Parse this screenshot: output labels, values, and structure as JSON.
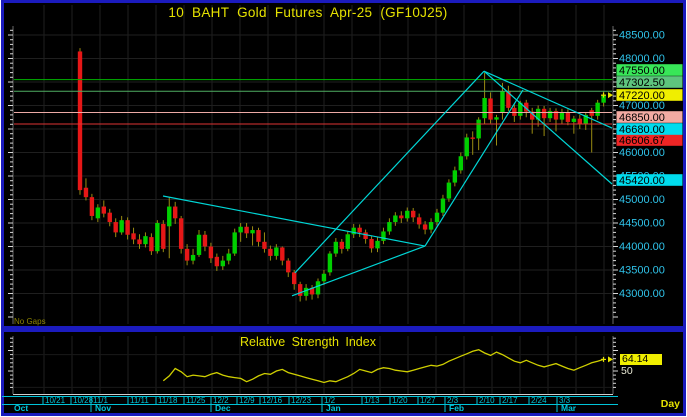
{
  "window": {
    "title": "10 BAHT Gold Futures Apr-25 (GF10J25)",
    "timeframe_label": "Day",
    "status_label": "No Gaps"
  },
  "colors": {
    "background": "#000000",
    "frame_blue": "#1b1bbe",
    "grid": "#1f1f1f",
    "axis_text_cyan": "#2fc3ea",
    "date_axis_cyan": "#00c4d8",
    "title_yellow": "#e6e200",
    "candle_up_green": "#00cf00",
    "candle_down_red": "#e61717",
    "wick_olive": "#9a8c12",
    "trendline_cyan": "#00d6d6",
    "rsi_line_yellow": "#cfcf00",
    "spine_white": "#d8d8d8"
  },
  "chart_data": [
    {
      "type": "candlestick",
      "title": "10 BAHT Gold Futures Apr-25 (GF10J25)",
      "timeframe": "Day",
      "ylim": [
        42400,
        48700
      ],
      "grid": true,
      "y_ticks": [
        48500,
        48000,
        47500,
        47000,
        46500,
        46000,
        45500,
        45000,
        44500,
        44000,
        43500,
        43000
      ],
      "levels": [
        {
          "price": 47550,
          "label": "47550.00",
          "line_color": "#00b400",
          "chip_bg": "#38e658",
          "chip_y": 70
        },
        {
          "price": 47302.5,
          "label": "47302.50",
          "line_color": "#4fae62",
          "chip_bg": "#5ec47e",
          "chip_y": 82
        },
        {
          "price": 46850,
          "label": "46850.00",
          "line_color": "#edaaa6",
          "chip_bg": "#f2aaa2",
          "chip_y": 117
        },
        {
          "price": 46606.67,
          "label": "46606.67",
          "line_color": "#de3434",
          "chip_bg": "#ee2525",
          "chip_y": 140
        }
      ],
      "last_price": {
        "price": 47220,
        "label": "47220.00",
        "chip_bg": "#f0ee00",
        "chip_y": 95
      },
      "trendline_value_labels": [
        {
          "label": "46680.00",
          "chip_bg": "#00dcee",
          "chip_y": 129
        },
        {
          "label": "45420.00",
          "chip_bg": "#00dcee",
          "chip_y": 180
        }
      ],
      "trendlines": [
        [
          163,
          45075,
          425,
          44010
        ],
        [
          292,
          42950,
          425,
          44010
        ],
        [
          295,
          43440,
          484,
          47730
        ],
        [
          425,
          44010,
          523,
          47330
        ],
        [
          484,
          47730,
          612,
          46520
        ],
        [
          484,
          47730,
          612,
          45330
        ]
      ],
      "candles": [
        [
          48150,
          48220,
          45100,
          45200
        ],
        [
          45250,
          45450,
          44980,
          45050
        ],
        [
          45050,
          45120,
          44560,
          44650
        ],
        [
          44600,
          44900,
          44520,
          44830
        ],
        [
          44850,
          44980,
          44620,
          44700
        ],
        [
          44720,
          44800,
          44430,
          44520
        ],
        [
          44520,
          44600,
          44200,
          44300
        ],
        [
          44300,
          44650,
          44250,
          44560
        ],
        [
          44560,
          44620,
          44150,
          44250
        ],
        [
          44280,
          44400,
          44050,
          44150
        ],
        [
          44150,
          44260,
          43950,
          44050
        ],
        [
          44050,
          44300,
          43980,
          44220
        ],
        [
          44200,
          44280,
          43820,
          43900
        ],
        [
          43900,
          44560,
          43850,
          44500
        ],
        [
          44480,
          44560,
          43880,
          43950
        ],
        [
          44430,
          45050,
          43750,
          44850
        ],
        [
          44850,
          44950,
          44480,
          44600
        ],
        [
          44600,
          44650,
          43850,
          43950
        ],
        [
          43950,
          44050,
          43600,
          43700
        ],
        [
          43700,
          43950,
          43620,
          43820
        ],
        [
          43820,
          44350,
          43780,
          44250
        ],
        [
          44250,
          44330,
          43900,
          44000
        ],
        [
          44000,
          44080,
          43650,
          43750
        ],
        [
          43780,
          43850,
          43480,
          43580
        ],
        [
          43580,
          43800,
          43500,
          43700
        ],
        [
          43700,
          43950,
          43620,
          43850
        ],
        [
          43850,
          44380,
          43800,
          44300
        ],
        [
          44300,
          44500,
          44100,
          44420
        ],
        [
          44420,
          44500,
          44180,
          44280
        ],
        [
          44280,
          44430,
          44020,
          44350
        ],
        [
          44350,
          44400,
          44000,
          44100
        ],
        [
          44100,
          44300,
          43870,
          43950
        ],
        [
          43950,
          44020,
          43700,
          43800
        ],
        [
          43800,
          44050,
          43720,
          43980
        ],
        [
          43980,
          44000,
          43600,
          43700
        ],
        [
          43700,
          43750,
          43350,
          43450
        ],
        [
          43450,
          43500,
          43080,
          43200
        ],
        [
          43200,
          43250,
          42830,
          42950
        ],
        [
          42950,
          43200,
          42850,
          43120
        ],
        [
          43120,
          43180,
          42870,
          42980
        ],
        [
          42980,
          43320,
          42900,
          43260
        ],
        [
          43260,
          43500,
          43180,
          43420
        ],
        [
          43450,
          43900,
          43380,
          43850
        ],
        [
          43850,
          44180,
          43780,
          44100
        ],
        [
          44100,
          44160,
          43850,
          43950
        ],
        [
          43950,
          44320,
          43900,
          44260
        ],
        [
          44260,
          44480,
          44180,
          44400
        ],
        [
          44400,
          44470,
          44200,
          44300
        ],
        [
          44300,
          44360,
          44060,
          44160
        ],
        [
          44160,
          44220,
          43870,
          43960
        ],
        [
          43960,
          44200,
          43880,
          44120
        ],
        [
          44120,
          44400,
          44050,
          44320
        ],
        [
          44320,
          44600,
          44250,
          44520
        ],
        [
          44520,
          44730,
          44440,
          44660
        ],
        [
          44660,
          44750,
          44500,
          44600
        ],
        [
          44600,
          44830,
          44530,
          44760
        ],
        [
          44760,
          44820,
          44520,
          44620
        ],
        [
          44620,
          44700,
          44380,
          44470
        ],
        [
          44470,
          44540,
          44260,
          44360
        ],
        [
          44360,
          44600,
          44280,
          44520
        ],
        [
          44520,
          44800,
          44450,
          44720
        ],
        [
          44720,
          45100,
          44650,
          45020
        ],
        [
          45020,
          45430,
          44950,
          45360
        ],
        [
          45360,
          45700,
          45280,
          45620
        ],
        [
          45620,
          46000,
          45550,
          45920
        ],
        [
          45920,
          46400,
          45850,
          46320
        ],
        [
          46320,
          46450,
          45950,
          46300
        ],
        [
          46300,
          46750,
          46050,
          46700
        ],
        [
          46730,
          47700,
          46600,
          47160
        ],
        [
          47150,
          47280,
          46620,
          46700
        ],
        [
          46700,
          46800,
          46150,
          46750
        ],
        [
          46850,
          47480,
          46700,
          47300
        ],
        [
          47300,
          47420,
          46880,
          46950
        ],
        [
          46950,
          47020,
          46650,
          46780
        ],
        [
          46780,
          47100,
          46700,
          47060
        ],
        [
          47060,
          47120,
          46750,
          46870
        ],
        [
          46870,
          46950,
          46400,
          46700
        ],
        [
          46700,
          47000,
          46550,
          46930
        ],
        [
          46930,
          46990,
          46350,
          46730
        ],
        [
          46730,
          46950,
          46650,
          46880
        ],
        [
          46880,
          46940,
          46450,
          46700
        ],
        [
          46700,
          46930,
          46600,
          46850
        ],
        [
          46850,
          46920,
          46580,
          46650
        ],
        [
          46650,
          46780,
          46400,
          46720
        ],
        [
          46720,
          46800,
          46500,
          46600
        ],
        [
          46600,
          46850,
          46480,
          46800
        ],
        [
          46900,
          46950,
          46000,
          46780
        ],
        [
          46780,
          47120,
          46700,
          47060
        ],
        [
          47060,
          47300,
          46980,
          47220
        ]
      ],
      "x_axis": {
        "weeks": [
          [
            45,
            "10/21"
          ],
          [
            73,
            "10/28"
          ],
          [
            93,
            "11/1"
          ],
          [
            130,
            "11/11"
          ],
          [
            158,
            "11/18"
          ],
          [
            186,
            "11/25"
          ],
          [
            213,
            "12/2"
          ],
          [
            239,
            "12/9"
          ],
          [
            262,
            "12/16"
          ],
          [
            291,
            "12/23"
          ],
          [
            324,
            "1/2"
          ],
          [
            364,
            "1/13"
          ],
          [
            392,
            "1/20"
          ],
          [
            420,
            "1/27"
          ],
          [
            447,
            "2/3"
          ],
          [
            479,
            "2/10"
          ],
          [
            502,
            "2/17"
          ],
          [
            531,
            "2/24"
          ],
          [
            559,
            "3/3"
          ]
        ],
        "months": [
          [
            14,
            "Oct"
          ],
          [
            95,
            "Nov"
          ],
          [
            215,
            "Dec"
          ],
          [
            326,
            "Jan"
          ],
          [
            449,
            "Feb"
          ],
          [
            561,
            "Mar"
          ]
        ],
        "month_tick_x": [
          93,
          213,
          324,
          447,
          559
        ]
      },
      "status_label": "No Gaps"
    },
    {
      "type": "line",
      "title": "Relative Strength Index",
      "series": [
        {
          "name": "RSI",
          "start_index": 14,
          "values": [
            38,
            44,
            53,
            49,
            43,
            45,
            44,
            43,
            46,
            48,
            45,
            43,
            42,
            41,
            37,
            40,
            44,
            47,
            46,
            50,
            52,
            48,
            46,
            44,
            42,
            40,
            38,
            36,
            38,
            37,
            40,
            43,
            47,
            52,
            50,
            48,
            52,
            54,
            53,
            51,
            50,
            49,
            51,
            53,
            55,
            57,
            56,
            58,
            62,
            65,
            68,
            71,
            74,
            76,
            72,
            69,
            73,
            70,
            66,
            62,
            60,
            63,
            60,
            57,
            55,
            57,
            59,
            56,
            53,
            51,
            54,
            57,
            60,
            62,
            64.14
          ]
        }
      ],
      "last_value": 64.14,
      "last_value_label": "64.14",
      "midline": 50,
      "midline_label": "50",
      "legend_position": "none"
    }
  ]
}
